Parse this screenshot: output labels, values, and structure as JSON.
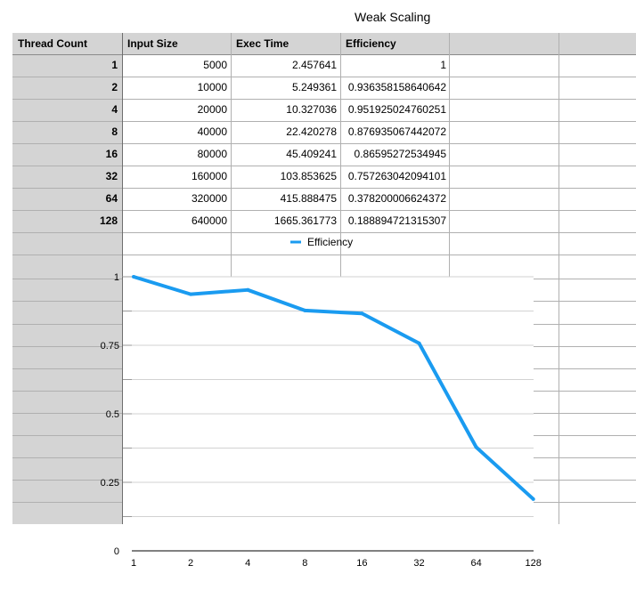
{
  "chart_data": {
    "type": "line",
    "title": "Weak Scaling",
    "table": {
      "columns": [
        "Thread Count",
        "Input Size",
        "Exec Time",
        "Efficiency"
      ],
      "rows": [
        [
          "1",
          "5000",
          "2.457641",
          "1"
        ],
        [
          "2",
          "10000",
          "5.249361",
          "0.936358158640642"
        ],
        [
          "4",
          "20000",
          "10.327036",
          "0.951925024760251"
        ],
        [
          "8",
          "40000",
          "22.420278",
          "0.876935067442072"
        ],
        [
          "16",
          "80000",
          "45.409241",
          "0.86595272534945"
        ],
        [
          "32",
          "160000",
          "103.853625",
          "0.757263042094101"
        ],
        [
          "64",
          "320000",
          "415.888475",
          "0.378200006624372"
        ],
        [
          "128",
          "640000",
          "1665.361773",
          "0.188894721315307"
        ]
      ]
    },
    "categories": [
      "1",
      "2",
      "4",
      "8",
      "16",
      "32",
      "64",
      "128"
    ],
    "series": [
      {
        "name": "Efficiency",
        "color": "#1a9bf0",
        "values": [
          1,
          0.936358158640642,
          0.951925024760251,
          0.876935067442072,
          0.86595272534945,
          0.757263042094101,
          0.378200006624372,
          0.188894721315307
        ]
      }
    ],
    "y_ticks": [
      "0",
      "0.25",
      "0.5",
      "0.75",
      "1"
    ],
    "ylim": [
      0,
      1
    ],
    "xlabel": "",
    "ylabel": "",
    "grid": true,
    "legend": "top-center"
  }
}
